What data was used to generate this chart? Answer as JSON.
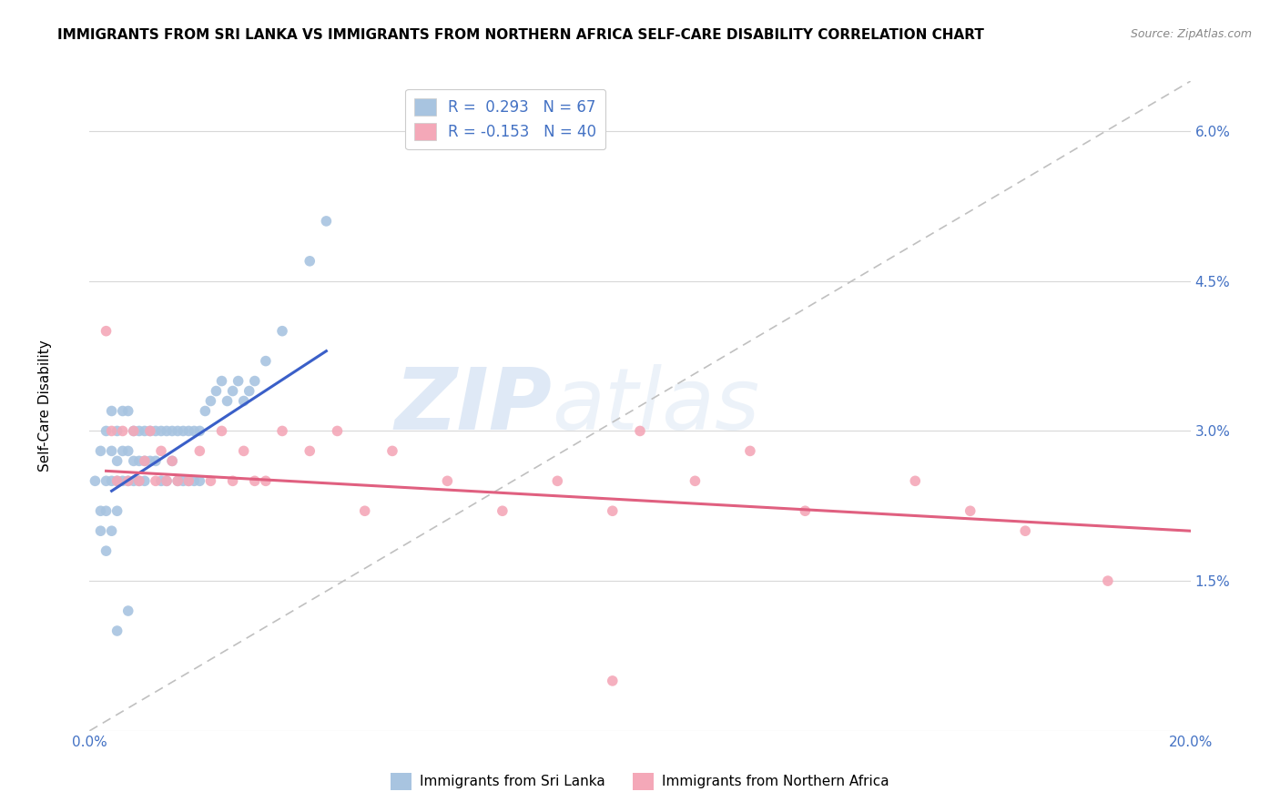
{
  "title": "IMMIGRANTS FROM SRI LANKA VS IMMIGRANTS FROM NORTHERN AFRICA SELF-CARE DISABILITY CORRELATION CHART",
  "source": "Source: ZipAtlas.com",
  "ylabel": "Self-Care Disability",
  "xlim": [
    0.0,
    0.2
  ],
  "ylim": [
    0.0,
    0.065
  ],
  "xtick_positions": [
    0.0,
    0.04,
    0.08,
    0.12,
    0.16,
    0.2
  ],
  "xticklabels": [
    "0.0%",
    "",
    "",
    "",
    "",
    "20.0%"
  ],
  "ytick_positions": [
    0.0,
    0.015,
    0.03,
    0.045,
    0.06
  ],
  "yticklabels": [
    "",
    "1.5%",
    "3.0%",
    "4.5%",
    "6.0%"
  ],
  "R_sri": 0.293,
  "N_sri": 67,
  "R_nafrica": -0.153,
  "N_nafrica": 40,
  "color_sri": "#a8c4e0",
  "color_nafrica": "#f4a8b8",
  "line_sri": "#3a5fc8",
  "line_nafrica": "#e06080",
  "line_diagonal_color": "#c0c0c0",
  "watermark": "ZIPatlas",
  "tick_color": "#4472c4",
  "grid_color": "#d8d8d8",
  "sri_lanka_x": [
    0.001,
    0.002,
    0.002,
    0.002,
    0.003,
    0.003,
    0.003,
    0.003,
    0.004,
    0.004,
    0.004,
    0.004,
    0.005,
    0.005,
    0.005,
    0.005,
    0.006,
    0.006,
    0.006,
    0.007,
    0.007,
    0.007,
    0.008,
    0.008,
    0.008,
    0.009,
    0.009,
    0.009,
    0.01,
    0.01,
    0.01,
    0.011,
    0.011,
    0.012,
    0.012,
    0.013,
    0.013,
    0.014,
    0.014,
    0.015,
    0.015,
    0.016,
    0.016,
    0.017,
    0.017,
    0.018,
    0.018,
    0.019,
    0.019,
    0.02,
    0.02,
    0.021,
    0.022,
    0.023,
    0.024,
    0.025,
    0.026,
    0.027,
    0.028,
    0.029,
    0.03,
    0.032,
    0.035,
    0.04,
    0.043,
    0.005,
    0.007
  ],
  "sri_lanka_y": [
    0.025,
    0.022,
    0.028,
    0.02,
    0.03,
    0.025,
    0.022,
    0.018,
    0.032,
    0.028,
    0.025,
    0.02,
    0.03,
    0.027,
    0.025,
    0.022,
    0.032,
    0.028,
    0.025,
    0.032,
    0.028,
    0.025,
    0.03,
    0.027,
    0.025,
    0.03,
    0.027,
    0.025,
    0.03,
    0.027,
    0.025,
    0.03,
    0.027,
    0.03,
    0.027,
    0.03,
    0.025,
    0.03,
    0.025,
    0.03,
    0.027,
    0.03,
    0.025,
    0.03,
    0.025,
    0.03,
    0.025,
    0.03,
    0.025,
    0.03,
    0.025,
    0.032,
    0.033,
    0.034,
    0.035,
    0.033,
    0.034,
    0.035,
    0.033,
    0.034,
    0.035,
    0.037,
    0.04,
    0.047,
    0.051,
    0.01,
    0.012
  ],
  "nafrica_x": [
    0.003,
    0.004,
    0.005,
    0.006,
    0.007,
    0.008,
    0.009,
    0.01,
    0.011,
    0.012,
    0.013,
    0.014,
    0.015,
    0.016,
    0.018,
    0.02,
    0.022,
    0.024,
    0.026,
    0.028,
    0.03,
    0.032,
    0.035,
    0.04,
    0.045,
    0.05,
    0.055,
    0.065,
    0.075,
    0.085,
    0.095,
    0.1,
    0.11,
    0.12,
    0.13,
    0.15,
    0.16,
    0.17,
    0.185,
    0.095
  ],
  "nafrica_y": [
    0.04,
    0.03,
    0.025,
    0.03,
    0.025,
    0.03,
    0.025,
    0.027,
    0.03,
    0.025,
    0.028,
    0.025,
    0.027,
    0.025,
    0.025,
    0.028,
    0.025,
    0.03,
    0.025,
    0.028,
    0.025,
    0.025,
    0.03,
    0.028,
    0.03,
    0.022,
    0.028,
    0.025,
    0.022,
    0.025,
    0.022,
    0.03,
    0.025,
    0.028,
    0.022,
    0.025,
    0.022,
    0.02,
    0.015,
    0.005
  ],
  "sri_line_x0": 0.004,
  "sri_line_x1": 0.043,
  "sri_line_y0": 0.024,
  "sri_line_y1": 0.038,
  "naf_line_x0": 0.003,
  "naf_line_x1": 0.2,
  "naf_line_y0": 0.026,
  "naf_line_y1": 0.02
}
